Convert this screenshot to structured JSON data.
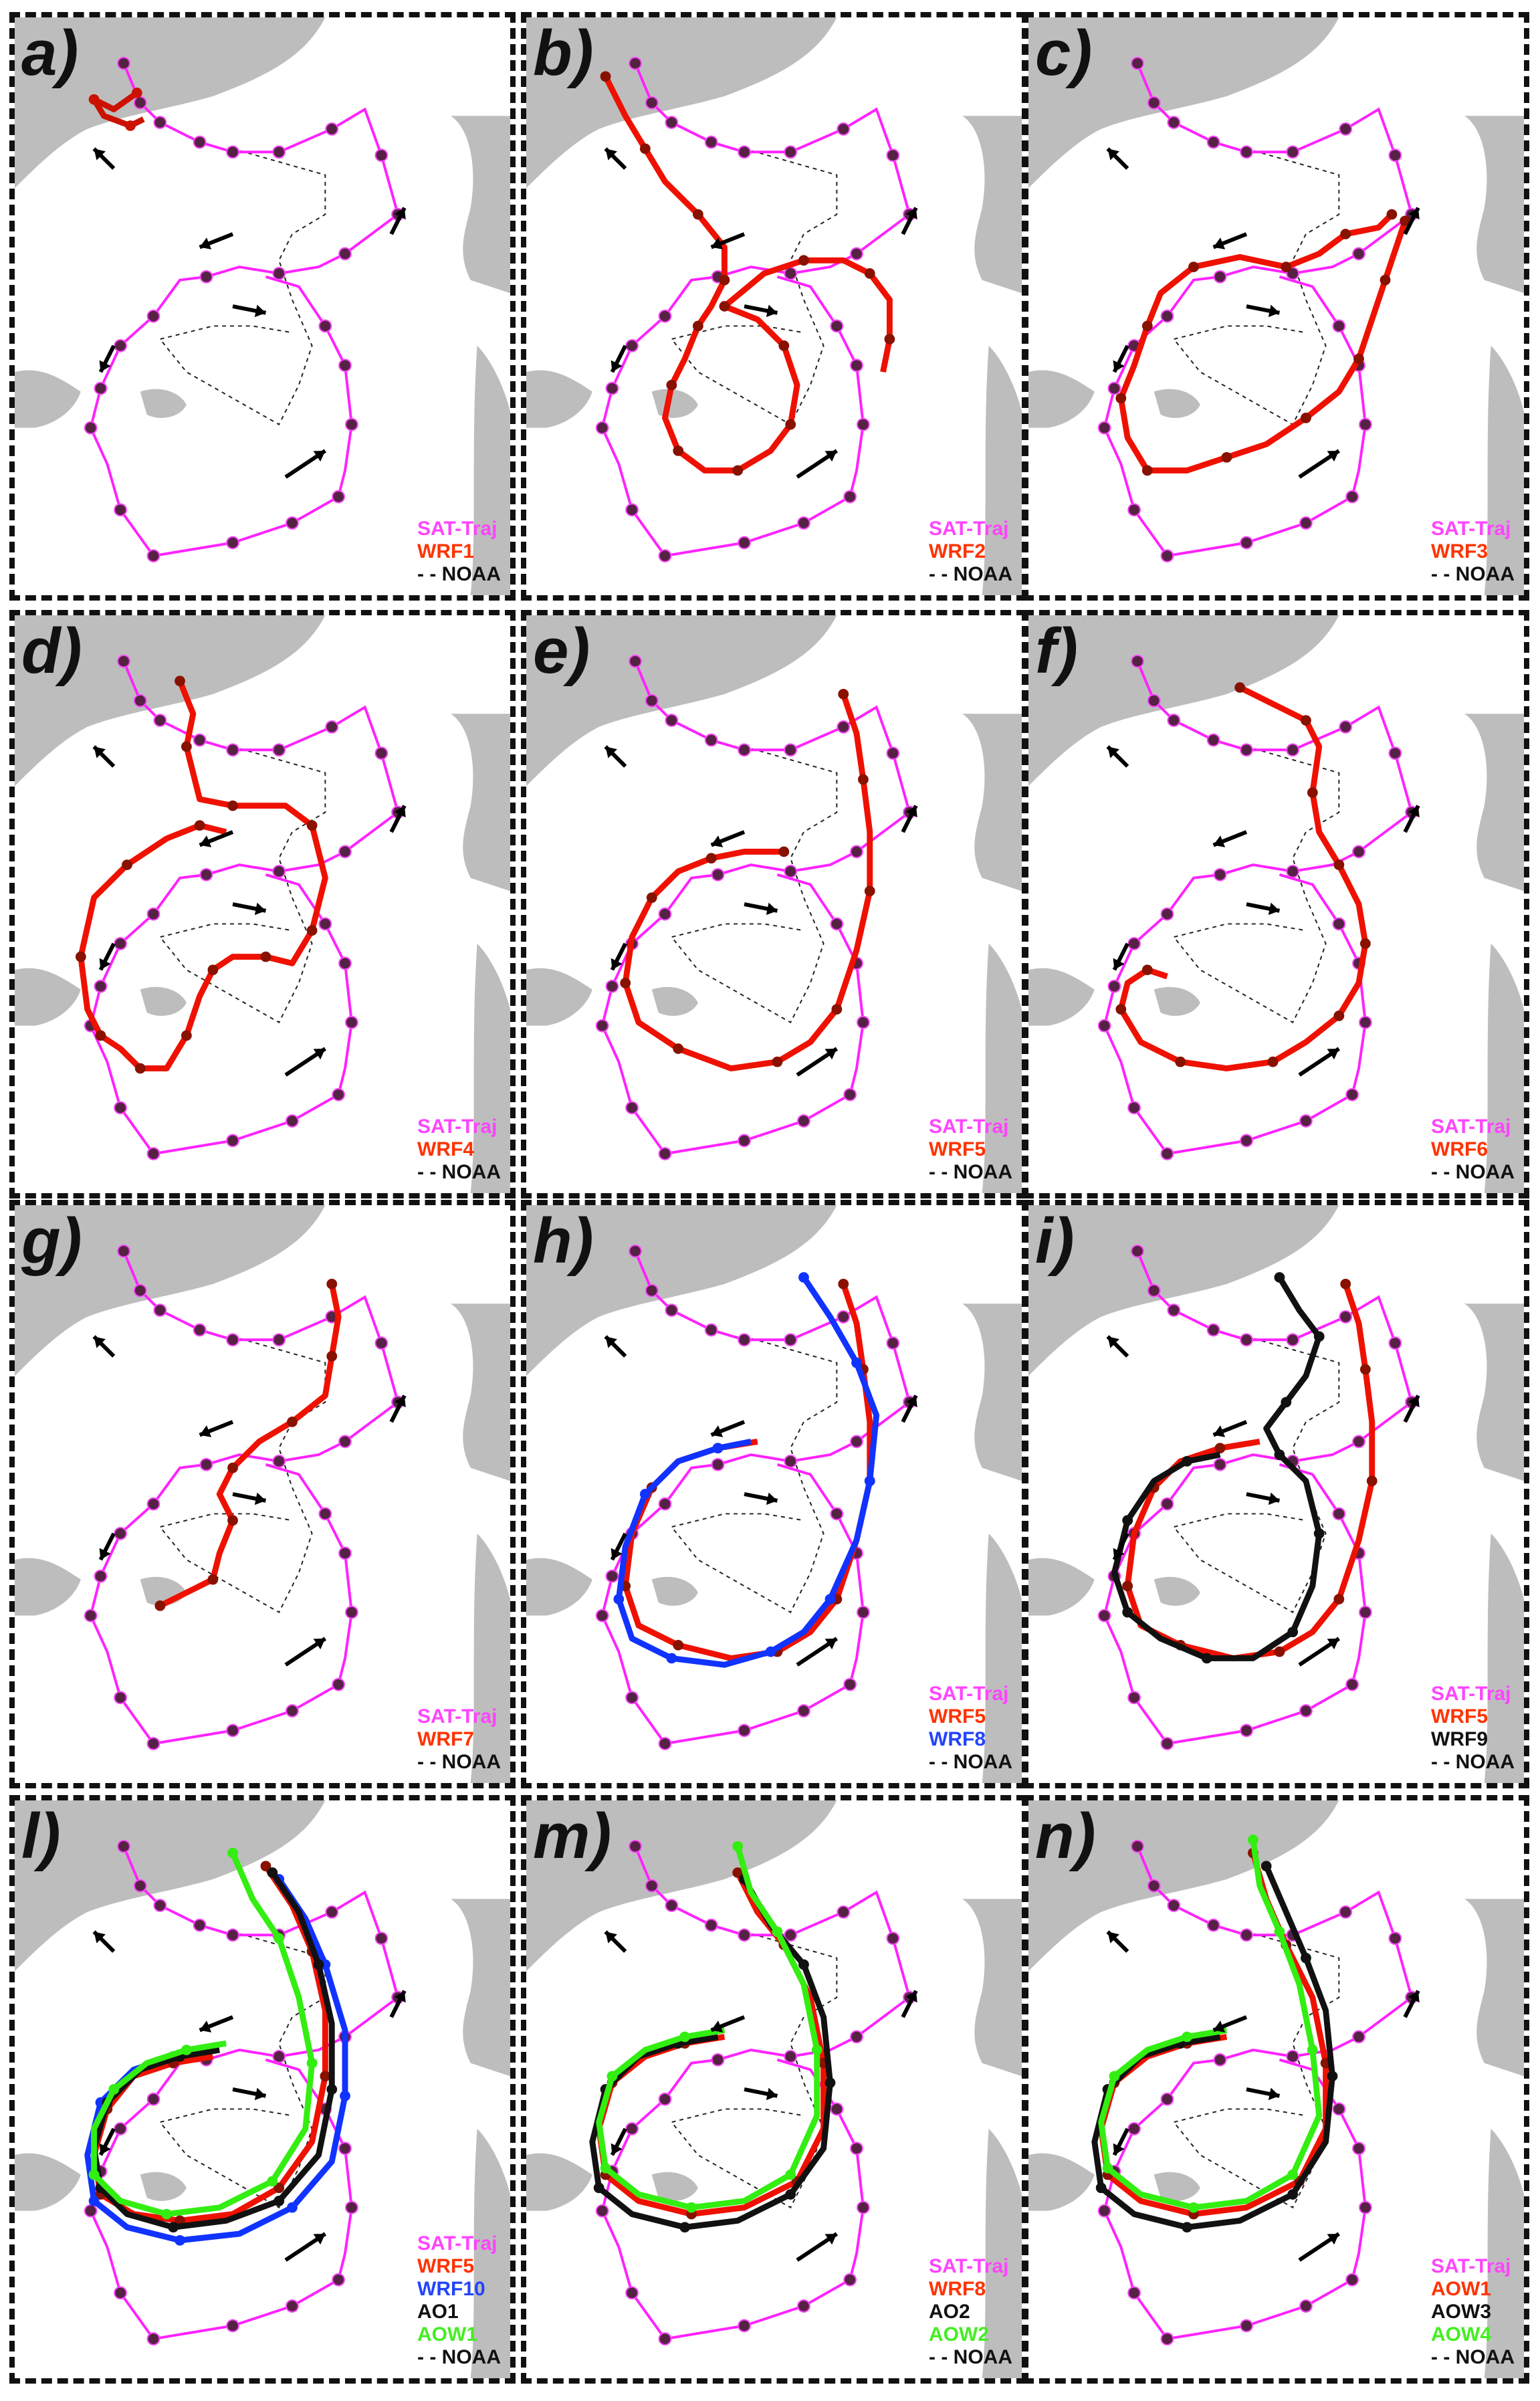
{
  "colors": {
    "sat_traj": "#ff22ff",
    "land": "#bdbdbd",
    "noaa": "#222222",
    "marker": "#552244"
  },
  "panels": [
    {
      "label": "a)",
      "legend": [
        {
          "text": "SAT-Traj",
          "color": "#ff44ff"
        },
        {
          "text": "WRF1",
          "color": "#ff3300"
        },
        {
          "text": "- - NOAA",
          "color": "#111111"
        }
      ],
      "model": "wrf1"
    },
    {
      "label": "b)",
      "legend": [
        {
          "text": "SAT-Traj",
          "color": "#ff44ff"
        },
        {
          "text": "WRF2",
          "color": "#ff3300"
        },
        {
          "text": "- - NOAA",
          "color": "#111111"
        }
      ],
      "model": "wrf2"
    },
    {
      "label": "c)",
      "legend": [
        {
          "text": "SAT-Traj",
          "color": "#ff44ff"
        },
        {
          "text": "WRF3",
          "color": "#ff3300"
        },
        {
          "text": "- - NOAA",
          "color": "#111111"
        }
      ],
      "model": "wrf3"
    },
    {
      "label": "d)",
      "legend": [
        {
          "text": "SAT-Traj",
          "color": "#ff44ff"
        },
        {
          "text": "WRF4",
          "color": "#ff3300"
        },
        {
          "text": "- - NOAA",
          "color": "#111111"
        }
      ],
      "model": "wrf4"
    },
    {
      "label": "e)",
      "legend": [
        {
          "text": "SAT-Traj",
          "color": "#ff44ff"
        },
        {
          "text": "WRF5",
          "color": "#ff3300"
        },
        {
          "text": "- - NOAA",
          "color": "#111111"
        }
      ],
      "model": "wrf5"
    },
    {
      "label": "f)",
      "legend": [
        {
          "text": "SAT-Traj",
          "color": "#ff44ff"
        },
        {
          "text": "WRF6",
          "color": "#ff3300"
        },
        {
          "text": "- - NOAA",
          "color": "#111111"
        }
      ],
      "model": "wrf6"
    },
    {
      "label": "g)",
      "legend": [
        {
          "text": "SAT-Traj",
          "color": "#ff44ff"
        },
        {
          "text": "WRF7",
          "color": "#ff3300"
        },
        {
          "text": "- - NOAA",
          "color": "#111111"
        }
      ],
      "model": "wrf7"
    },
    {
      "label": "h)",
      "legend": [
        {
          "text": "SAT-Traj",
          "color": "#ff44ff"
        },
        {
          "text": "WRF5",
          "color": "#ff3300"
        },
        {
          "text": "WRF8",
          "color": "#2244ff"
        },
        {
          "text": "- - NOAA",
          "color": "#111111"
        }
      ],
      "model": "wrf5_8"
    },
    {
      "label": "i)",
      "legend": [
        {
          "text": "SAT-Traj",
          "color": "#ff44ff"
        },
        {
          "text": "WRF5",
          "color": "#ff3300"
        },
        {
          "text": "WRF9",
          "color": "#111111"
        },
        {
          "text": "- - NOAA",
          "color": "#111111"
        }
      ],
      "model": "wrf5_9"
    },
    {
      "label": "l)",
      "legend": [
        {
          "text": "SAT-Traj",
          "color": "#ff44ff"
        },
        {
          "text": "WRF5",
          "color": "#ff3300"
        },
        {
          "text": "WRF10",
          "color": "#2244ff"
        },
        {
          "text": "AO1",
          "color": "#111111"
        },
        {
          "text": "AOW1",
          "color": "#44ee22"
        },
        {
          "text": "- - NOAA",
          "color": "#111111"
        }
      ],
      "model": "multi1"
    },
    {
      "label": "m)",
      "legend": [
        {
          "text": "SAT-Traj",
          "color": "#ff44ff"
        },
        {
          "text": "WRF8",
          "color": "#ff3300"
        },
        {
          "text": "AO2",
          "color": "#111111"
        },
        {
          "text": "AOW2",
          "color": "#44ee22"
        },
        {
          "text": "- - NOAA",
          "color": "#111111"
        }
      ],
      "model": "multi2"
    },
    {
      "label": "n)",
      "legend": [
        {
          "text": "SAT-Traj",
          "color": "#ff44ff"
        },
        {
          "text": "AOW1",
          "color": "#ff3300"
        },
        {
          "text": "AOW3",
          "color": "#111111"
        },
        {
          "text": "AOW4",
          "color": "#44ee22"
        },
        {
          "text": "- - NOAA",
          "color": "#111111"
        }
      ],
      "model": "multi3"
    }
  ]
}
